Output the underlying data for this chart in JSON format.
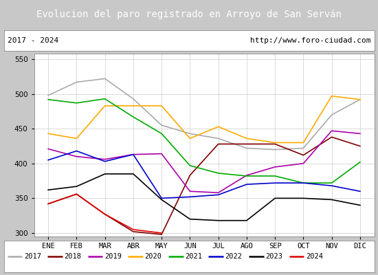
{
  "title": "Evolucion del paro registrado en Arroyo de San Serván",
  "subtitle_left": "2017 - 2024",
  "subtitle_right": "http://www.foro-ciudad.com",
  "months": [
    "ENE",
    "FEB",
    "MAR",
    "ABR",
    "MAY",
    "JUN",
    "JUL",
    "AGO",
    "SEP",
    "OCT",
    "NOV",
    "DIC"
  ],
  "ylim": [
    295,
    558
  ],
  "yticks": [
    300,
    350,
    400,
    450,
    500,
    550
  ],
  "series": {
    "2017": {
      "color": "#aaaaaa",
      "values": [
        498,
        517,
        522,
        493,
        455,
        443,
        436,
        422,
        420,
        422,
        470,
        492
      ]
    },
    "2018": {
      "color": "#7f0000",
      "values": [
        342,
        356,
        327,
        302,
        298,
        383,
        428,
        428,
        428,
        412,
        438,
        425
      ]
    },
    "2019": {
      "color": "#aa00aa",
      "values": [
        421,
        410,
        406,
        413,
        414,
        360,
        358,
        383,
        395,
        400,
        447,
        443
      ]
    },
    "2020": {
      "color": "#ffaa00",
      "values": [
        443,
        436,
        483,
        483,
        483,
        436,
        453,
        436,
        430,
        430,
        497,
        492
      ]
    },
    "2021": {
      "color": "#00aa00",
      "values": [
        492,
        487,
        493,
        467,
        443,
        397,
        386,
        382,
        382,
        372,
        372,
        402
      ]
    },
    "2022": {
      "color": "#0000cc",
      "values": [
        405,
        418,
        403,
        413,
        350,
        352,
        355,
        370,
        372,
        372,
        368,
        360
      ]
    },
    "2023": {
      "color": "#000000",
      "values": [
        362,
        367,
        385,
        385,
        348,
        320,
        318,
        318,
        350,
        350,
        348,
        340
      ]
    },
    "2024": {
      "color": "#dd0000",
      "values": [
        342,
        356,
        327,
        305,
        300,
        null,
        null,
        null,
        null,
        null,
        null,
        null
      ]
    }
  },
  "title_bg": "#4a86c8",
  "title_color": "white",
  "fig_bg": "#c8c8c8",
  "plot_bg": "white",
  "grid_color": "#cccccc"
}
